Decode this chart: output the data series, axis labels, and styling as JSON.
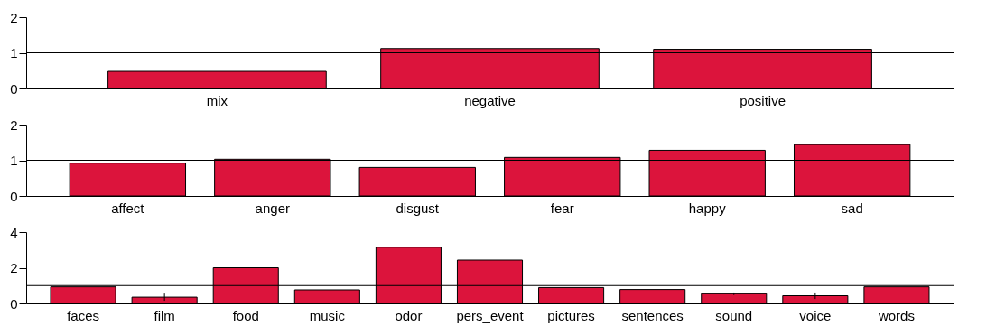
{
  "chart_data": [
    {
      "type": "bar",
      "categories": [
        "mix",
        "negative",
        "positive"
      ],
      "values": [
        0.48,
        1.12,
        1.1
      ],
      "color": "#dc143c",
      "ylim": [
        0,
        2
      ],
      "yticks": [
        0,
        1,
        2
      ],
      "ref_lines": [
        {
          "axis": "y",
          "value": 1,
          "color": "#000000"
        }
      ],
      "grid": false
    },
    {
      "type": "bar",
      "categories": [
        "affect",
        "anger",
        "disgust",
        "fear",
        "happy",
        "sad"
      ],
      "values": [
        0.92,
        1.03,
        0.8,
        1.08,
        1.28,
        1.44
      ],
      "color": "#dc143c",
      "ylim": [
        0,
        2
      ],
      "yticks": [
        0,
        1,
        2
      ],
      "ref_lines": [
        {
          "axis": "y",
          "value": 1,
          "color": "#000000"
        }
      ],
      "grid": false
    },
    {
      "type": "bar",
      "categories": [
        "faces",
        "film",
        "food",
        "music",
        "odor",
        "pers_event",
        "pictures",
        "sentences",
        "sound",
        "voice",
        "words"
      ],
      "values": [
        0.93,
        0.35,
        2.0,
        0.76,
        3.15,
        2.43,
        0.89,
        0.78,
        0.54,
        0.43,
        0.93
      ],
      "errors": [
        null,
        0.2,
        null,
        null,
        null,
        null,
        null,
        null,
        0.07,
        0.18,
        null
      ],
      "color": "#dc143c",
      "ylim": [
        0,
        4
      ],
      "yticks": [
        0,
        2,
        4
      ],
      "ref_lines": [
        {
          "axis": "y",
          "value": 1,
          "color": "#000000"
        }
      ],
      "grid": false
    }
  ]
}
